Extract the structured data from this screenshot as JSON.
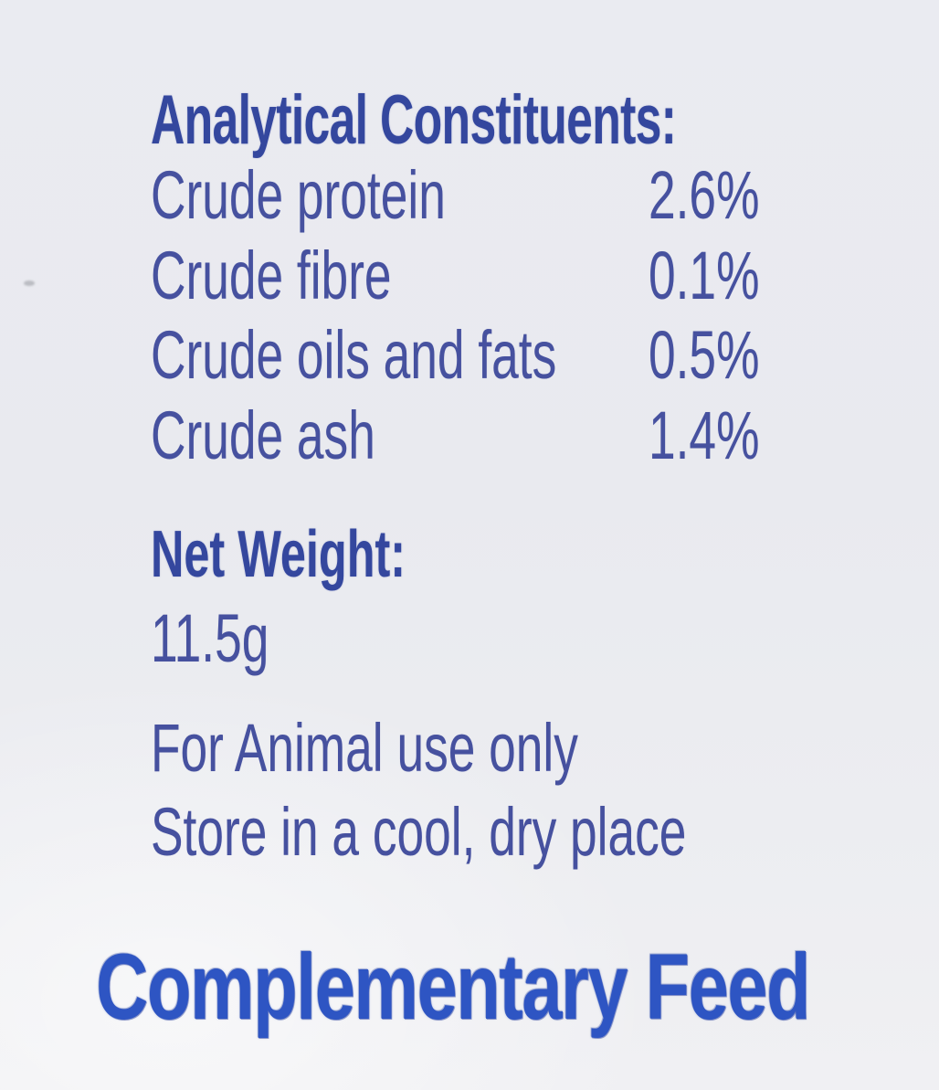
{
  "analytical": {
    "title": "Analytical Constituents:",
    "rows": [
      {
        "name": "Crude protein",
        "value": "2.6%"
      },
      {
        "name": "Crude fibre",
        "value": "0.1%"
      },
      {
        "name": "Crude oils and fats",
        "value": "0.5%"
      },
      {
        "name": "Crude ash",
        "value": "1.4%"
      }
    ]
  },
  "net_weight": {
    "title": "Net Weight:",
    "value": "11.5g"
  },
  "usage": {
    "line1": "For Animal use only",
    "line2": "Store in a cool, dry place"
  },
  "feed_type": "Complementary Feed",
  "colors": {
    "heading_blue": "#34479e",
    "body_blue": "#46519f",
    "feed_banner_blue": "#2e55c3",
    "background": "#e9eaef"
  }
}
